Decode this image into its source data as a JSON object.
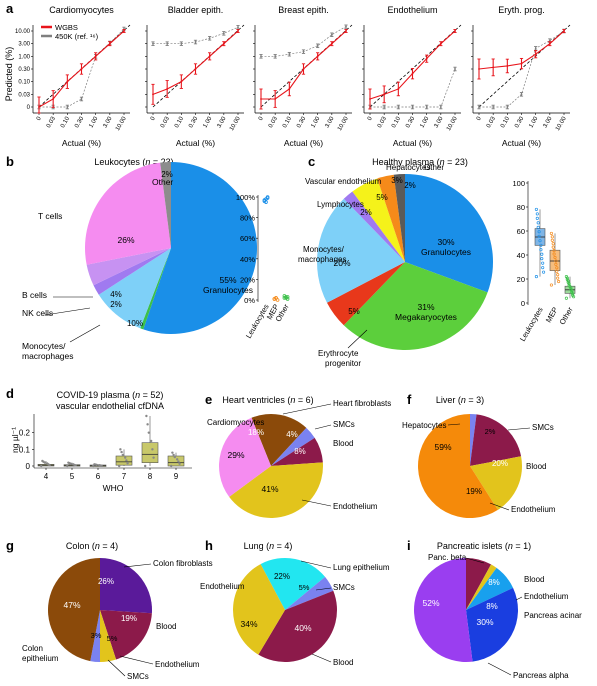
{
  "panel_a": {
    "letter": "a",
    "ylabel": "Predicted (%)",
    "xlabel": "Actual (%)",
    "legend": [
      {
        "name": "WGBS",
        "color": "#e8141b"
      },
      {
        "name": "450K (ref. ¹⁶)",
        "color": "#7f7f7f"
      }
    ],
    "tick_labels": [
      "0",
      "0.03",
      "0.10",
      "0.30",
      "1.00",
      "3.00",
      "10.00"
    ],
    "subplots": [
      {
        "title": "Cardiomyocytes"
      },
      {
        "title": "Bladder epith."
      },
      {
        "title": "Breast epith."
      },
      {
        "title": "Endothelium"
      },
      {
        "title": "Eryth. prog."
      }
    ]
  },
  "panel_b": {
    "letter": "b",
    "title_prefix": "Leukocytes (",
    "title_n": "n",
    "title_suffix": " = 23)",
    "labels": {
      "tcells": "T cells",
      "bcells": "B cells",
      "nkcells": "NK cells",
      "mono1": "Monocytes/",
      "mono2": "macrophages",
      "other": "Other",
      "gran": "Granulocytes",
      "gran_pct": "55%",
      "tcells_pct": "26%",
      "bcells_pct": "4%",
      "nk_pct": "2%",
      "mono_pct": "10%",
      "other_pct": "2%"
    },
    "strip_ticks": [
      "0%",
      "20%",
      "40%",
      "60%",
      "80%",
      "100%"
    ],
    "strip_cats": [
      "Leukocytes",
      "MEP",
      "Other"
    ]
  },
  "panel_c": {
    "letter": "c",
    "title_prefix": "Healthy plasma (",
    "title_n": "n",
    "title_suffix": " = 23)",
    "labels": {
      "hep": "Hepatocytes",
      "other": "Other",
      "vasc": "Vascular endothelium",
      "lymph": "Lymphocytes",
      "mono1": "Monocytes/",
      "mono2": "macrophages",
      "ery1": "Erythrocyte",
      "ery2": "progenitor",
      "gran_pct": "30%",
      "gran": "Granulocytes",
      "mega_pct": "31%",
      "mega": "Megakaryocytes",
      "mono_pct": "20%",
      "ery_pct": "5%",
      "vasc_pct": "5%",
      "lymph_pct": "2%",
      "hep_pct": "3%",
      "other_pct": "2%"
    },
    "box_ticks": [
      "0",
      "20",
      "40",
      "60",
      "80",
      "100"
    ],
    "box_cats": [
      "Leukocytes",
      "MEP",
      "Other"
    ]
  },
  "panel_d": {
    "letter": "d",
    "title1_prefix": "COVID-19 plasma (",
    "title1_n": "n",
    "title1_suffix": " = 52)",
    "title2": "vascular endothelial cfDNA",
    "ylabel": "ng µl⁻¹",
    "xlabel": "WHO",
    "yticks": [
      "0",
      "0.1",
      "0.2"
    ],
    "xticks": [
      "4",
      "5",
      "6",
      "7",
      "8",
      "9"
    ]
  },
  "panel_e": {
    "letter": "e",
    "title_prefix": "Heart ventricles (",
    "title_n": "n",
    "title_suffix": " = 6)",
    "labels": {
      "fib": "Heart fibroblasts",
      "smc": "SMCs",
      "blood": "Blood",
      "cardio": "Cardiomyocytes",
      "endo": "Endothelium",
      "fib_pct": "18%",
      "smc_pct": "4%",
      "blood_pct": "8%",
      "endo_pct": "41%",
      "cardio_pct": "29%"
    }
  },
  "panel_f": {
    "letter": "f",
    "title_prefix": "Liver (",
    "title_n": "n",
    "title_suffix": " = 3)",
    "labels": {
      "hep": "Hepatocytes",
      "smc": "SMCs",
      "blood": "Blood",
      "endo": "Endothelium",
      "hep_pct": "59%",
      "smc_pct": "2%",
      "blood_pct": "20%",
      "endo_pct": "19%"
    }
  },
  "panel_g": {
    "letter": "g",
    "title_prefix": "Colon (",
    "title_n": "n",
    "title_suffix": " = 4)",
    "labels": {
      "fib": "Colon fibroblasts",
      "blood": "Blood",
      "endo": "Endothelium",
      "smc": "SMCs",
      "epi1": "Colon",
      "epi2": "epithelium",
      "fib_pct": "26%",
      "blood_pct": "19%",
      "endo_pct": "5%",
      "smc_pct": "3%",
      "epi_pct": "47%"
    }
  },
  "panel_h": {
    "letter": "h",
    "title_prefix": "Lung (",
    "title_n": "n",
    "title_suffix": " = 4)",
    "labels": {
      "lepi1": "Lung epithelium",
      "smc": "SMCs",
      "blood": "Blood",
      "endo": "Endothelium",
      "lepi_pct": "22%",
      "smc_pct": "5%",
      "blood_pct": "40%",
      "endo_pct": "34%"
    }
  },
  "panel_i": {
    "letter": "i",
    "title_prefix": "Pancreatic islets (",
    "title_n": "n",
    "title_suffix": " = 1)",
    "labels": {
      "beta": "Panc. beta",
      "blood": "Blood",
      "endo": "Endothelium",
      "acinar": "Pancreas acinar",
      "alpha": "Pancreas alpha",
      "beta_pct": "52%",
      "blood_pct": "8%",
      "acinar_pct": "8%",
      "alpha_pct": "30%"
    }
  },
  "chart_data": [
    {
      "panel": "a",
      "type": "line",
      "x_ticks": [
        0,
        0.03,
        0.1,
        0.3,
        1,
        3,
        10
      ],
      "subplots": [
        {
          "title": "Cardiomyocytes",
          "series": [
            {
              "name": "WGBS",
              "values": [
                0,
                0.02,
                0.1,
                0.3,
                1.0,
                3.0,
                10.0
              ]
            },
            {
              "name": "450K (ref. ¹⁶)",
              "values": [
                0,
                0,
                0,
                0.02,
                1.0,
                3.2,
                12.0
              ]
            }
          ]
        },
        {
          "title": "Bladder epith.",
          "series": [
            {
              "name": "WGBS",
              "values": [
                0.03,
                0.05,
                0.1,
                0.3,
                1.0,
                3.0,
                10.0
              ]
            },
            {
              "name": "450K (ref. ¹⁶)",
              "values": [
                3.0,
                3.0,
                3.0,
                3.5,
                5.0,
                8.0,
                14.0
              ]
            }
          ]
        },
        {
          "title": "Breast epith.",
          "series": [
            {
              "name": "WGBS",
              "values": [
                0.02,
                0.02,
                0.05,
                0.3,
                1.0,
                3.0,
                10.0
              ]
            },
            {
              "name": "450K (ref. ¹⁶)",
              "values": [
                1.0,
                1.0,
                1.2,
                1.5,
                2.5,
                7.0,
                15.0
              ]
            }
          ]
        },
        {
          "title": "Endothelium",
          "series": [
            {
              "name": "WGBS",
              "values": [
                0.02,
                0.03,
                0.05,
                0.2,
                0.8,
                3.0,
                10.0
              ]
            },
            {
              "name": "450K (ref. ¹⁶)",
              "values": [
                0,
                0,
                0,
                0,
                0,
                0,
                0.3
              ]
            }
          ]
        },
        {
          "title": "Eryth. prog.",
          "series": [
            {
              "name": "WGBS",
              "values": [
                0.3,
                0.35,
                0.4,
                0.5,
                1.2,
                3.0,
                10.0
              ]
            },
            {
              "name": "450K (ref. ¹⁶)",
              "values": [
                0,
                0,
                0,
                0.03,
                2.0,
                4.0,
                10.0
              ]
            }
          ]
        }
      ]
    },
    {
      "panel": "b",
      "type": "pie",
      "title": "Leukocytes (n = 23)",
      "slices": [
        {
          "label": "Granulocytes",
          "value": 55,
          "color": "#1a8fe8"
        },
        {
          "label": "Other (green)",
          "value": 0.6,
          "color": "#3cc04a"
        },
        {
          "label": "Monocytes/macrophages",
          "value": 10,
          "color": "#7ed0f8"
        },
        {
          "label": "NK cells",
          "value": 2,
          "color": "#a07af0"
        },
        {
          "label": "B cells",
          "value": 4,
          "color": "#c792f2"
        },
        {
          "label": "T cells",
          "value": 26,
          "color": "#f58cf0"
        },
        {
          "label": "Other",
          "value": 2,
          "color": "#8c8c8c"
        }
      ]
    },
    {
      "panel": "b-strip",
      "type": "scatter",
      "categories": [
        "Leukocytes",
        "MEP",
        "Other"
      ],
      "values": [
        [
          97,
          98,
          100,
          96,
          95,
          99
        ],
        [
          1,
          2,
          0,
          1,
          2
        ],
        [
          2,
          3,
          1,
          4,
          2,
          3
        ]
      ],
      "ylim": [
        0,
        100
      ]
    },
    {
      "panel": "c",
      "type": "pie",
      "title": "Healthy plasma (n = 23)",
      "slices": [
        {
          "label": "Granulocytes",
          "value": 30,
          "color": "#1a8fe8"
        },
        {
          "label": "Megakaryocytes",
          "value": 31,
          "color": "#5ccf3c"
        },
        {
          "label": "Erythrocyte progenitor",
          "value": 5,
          "color": "#e8381b"
        },
        {
          "label": "Monocytes/macrophages",
          "value": 20,
          "color": "#7ed0f8"
        },
        {
          "label": "Lymphocytes",
          "value": 2,
          "color": "#a07af0"
        },
        {
          "label": "Vascular endothelium",
          "value": 5,
          "color": "#f5f21a"
        },
        {
          "label": "Hepatocytes",
          "value": 3,
          "color": "#f58a1a"
        },
        {
          "label": "Other",
          "value": 2,
          "color": "#5a5a5a"
        }
      ]
    },
    {
      "panel": "c-box",
      "type": "scatter",
      "categories": [
        "Leukocytes",
        "MEP",
        "Other"
      ],
      "boxes": [
        {
          "q1": 48,
          "median": 55,
          "q3": 62,
          "min": 22,
          "max": 78
        },
        {
          "q1": 27,
          "median": 35,
          "q3": 44,
          "min": 15,
          "max": 58
        },
        {
          "q1": 8,
          "median": 11,
          "q3": 14,
          "min": 4,
          "max": 22
        }
      ],
      "ylim": [
        0,
        100
      ]
    },
    {
      "panel": "d",
      "type": "scatter",
      "xlabel": "WHO",
      "ylabel": "ng µl⁻¹",
      "categories": [
        "4",
        "5",
        "6",
        "7",
        "8",
        "9"
      ],
      "boxes": [
        {
          "q1": 0.0,
          "median": 0.005,
          "q3": 0.01,
          "min": 0.0,
          "max": 0.03
        },
        {
          "q1": 0.0,
          "median": 0.003,
          "q3": 0.008,
          "min": 0.0,
          "max": 0.02
        },
        {
          "q1": 0.0,
          "median": 0.002,
          "q3": 0.006,
          "min": 0.0,
          "max": 0.01
        },
        {
          "q1": 0.005,
          "median": 0.025,
          "q3": 0.06,
          "min": 0.0,
          "max": 0.1
        },
        {
          "q1": 0.02,
          "median": 0.07,
          "q3": 0.14,
          "min": 0.0,
          "max": 0.3
        },
        {
          "q1": 0.0,
          "median": 0.02,
          "q3": 0.06,
          "min": 0.0,
          "max": 0.08
        }
      ],
      "ylim": [
        0,
        0.3
      ]
    },
    {
      "panel": "e",
      "type": "pie",
      "title": "Heart ventricles (n = 6)",
      "slices": [
        {
          "label": "Heart fibroblasts",
          "value": 18,
          "color": "#8b4a0a"
        },
        {
          "label": "SMCs",
          "value": 4,
          "color": "#7a82f0"
        },
        {
          "label": "Blood",
          "value": 8,
          "color": "#8c1a4a"
        },
        {
          "label": "Endothelium",
          "value": 41,
          "color": "#e2c41c"
        },
        {
          "label": "Cardiomyocytes",
          "value": 29,
          "color": "#f58cf0"
        }
      ]
    },
    {
      "panel": "f",
      "type": "pie",
      "title": "Liver (n = 3)",
      "slices": [
        {
          "label": "SMCs",
          "value": 2,
          "color": "#7a82f0"
        },
        {
          "label": "Blood",
          "value": 20,
          "color": "#8c1a4a"
        },
        {
          "label": "Endothelium",
          "value": 19,
          "color": "#e2c41c"
        },
        {
          "label": "Hepatocytes",
          "value": 59,
          "color": "#f58a0a"
        }
      ]
    },
    {
      "panel": "g",
      "type": "pie",
      "title": "Colon (n = 4)",
      "slices": [
        {
          "label": "Colon fibroblasts",
          "value": 26,
          "color": "#5a1a9a"
        },
        {
          "label": "Blood",
          "value": 19,
          "color": "#8c1a4a"
        },
        {
          "label": "Endothelium",
          "value": 5,
          "color": "#e2c41c"
        },
        {
          "label": "SMCs",
          "value": 3,
          "color": "#7a82f0"
        },
        {
          "label": "Colon epithelium",
          "value": 47,
          "color": "#8b4a0a"
        }
      ]
    },
    {
      "panel": "h",
      "type": "pie",
      "title": "Lung (n = 4)",
      "slices": [
        {
          "label": "Lung epithelium",
          "value": 22,
          "color": "#22e6f0"
        },
        {
          "label": "SMCs",
          "value": 5,
          "color": "#7a82f0"
        },
        {
          "label": "Blood",
          "value": 40,
          "color": "#8c1a4a"
        },
        {
          "label": "Endothelium",
          "value": 34,
          "color": "#e2c41c"
        }
      ]
    },
    {
      "panel": "i",
      "type": "pie",
      "title": "Pancreatic islets (n = 1)",
      "slices": [
        {
          "label": "Blood",
          "value": 8,
          "color": "#8c1a4a"
        },
        {
          "label": "Endothelium",
          "value": 2,
          "color": "#e2c41c"
        },
        {
          "label": "Pancreas acinar",
          "value": 8,
          "color": "#18a0ee"
        },
        {
          "label": "Pancreas alpha",
          "value": 30,
          "color": "#1a3ee0"
        },
        {
          "label": "Panc. beta",
          "value": 52,
          "color": "#9a3ef0"
        }
      ]
    }
  ]
}
